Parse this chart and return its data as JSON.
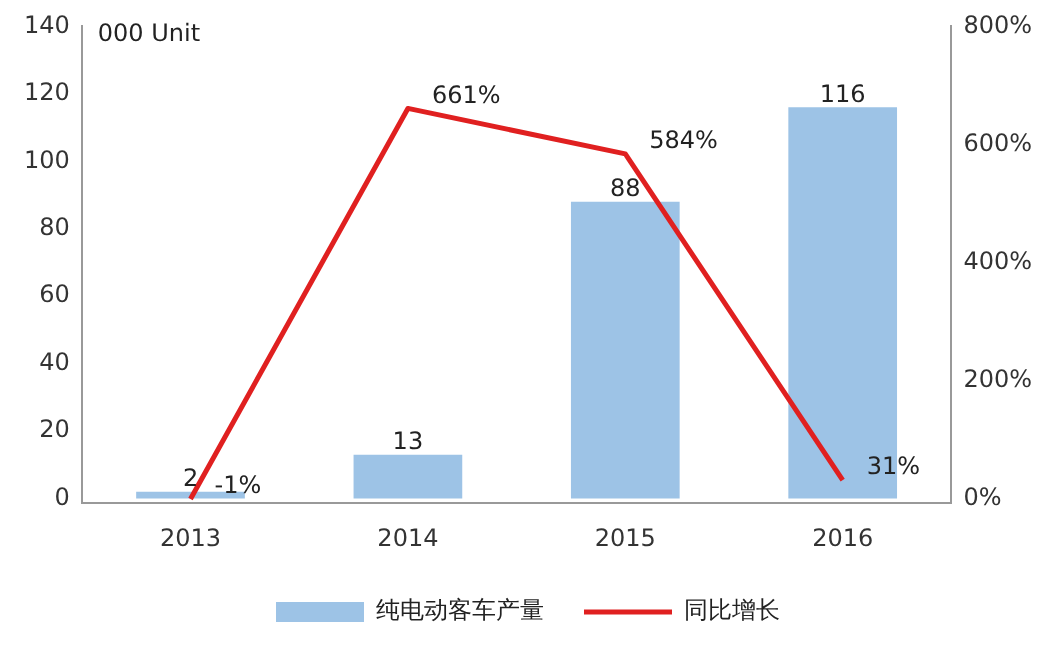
{
  "chart_data": {
    "type": "bar",
    "ylabel": "000 Unit",
    "categories": [
      "2013",
      "2014",
      "2015",
      "2016"
    ],
    "series": [
      {
        "name": "纯电动客车产量",
        "color": "#9dc3e6",
        "values": [
          2,
          13,
          88,
          116
        ],
        "value_labels": [
          "2",
          "13",
          "88",
          "116"
        ]
      },
      {
        "name": "同比增长",
        "type": "line",
        "axis": "y2",
        "color": "#e02020",
        "values": [
          -1,
          661,
          584,
          31
        ],
        "value_labels": [
          "-1%",
          "661%",
          "584%",
          "31%"
        ]
      }
    ],
    "ylim": [
      -1.4,
      140
    ],
    "yticks": [
      0,
      20,
      40,
      60,
      80,
      100,
      120,
      140
    ],
    "y2lim": [
      -8,
      800
    ],
    "y2ticks": [
      {
        "value": 0,
        "label": "0%"
      },
      {
        "value": 200,
        "label": "200%"
      },
      {
        "value": 400,
        "label": "400%"
      },
      {
        "value": 600,
        "label": "600%"
      },
      {
        "value": 800,
        "label": "800%"
      }
    ],
    "grid": false,
    "legend": "bottom",
    "marker": "none",
    "line_style": "solid"
  }
}
